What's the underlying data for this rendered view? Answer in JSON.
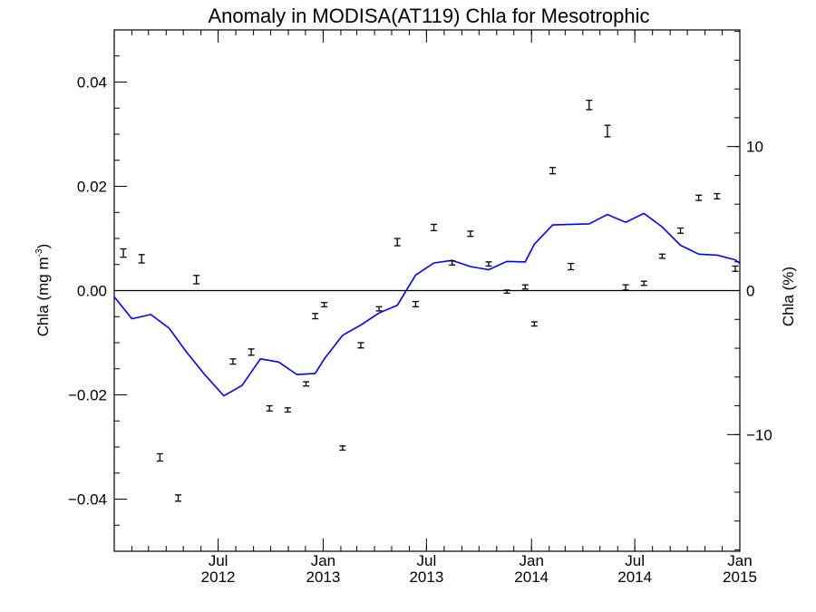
{
  "chart_data": {
    "type": "line",
    "title": "Anomaly in MODISA(AT119) Chla for Mesotrophic",
    "ylabel_left": {
      "main": "Chla (mg m",
      "sup": "-3",
      "close": ")"
    },
    "ylabel_right": "Chla (%)",
    "xlim": [
      "2012-01-01",
      "2015-01-01"
    ],
    "ylim_left": [
      -0.05,
      0.05
    ],
    "ylim_right": [
      -18.1,
      18.1
    ],
    "x_ticks": [
      {
        "date": "2012-07-01",
        "month": "Jul",
        "year": "2012"
      },
      {
        "date": "2013-01-01",
        "month": "Jan",
        "year": "2013"
      },
      {
        "date": "2013-07-01",
        "month": "Jul",
        "year": "2013"
      },
      {
        "date": "2014-01-01",
        "month": "Jan",
        "year": "2014"
      },
      {
        "date": "2014-07-01",
        "month": "Jul",
        "year": "2014"
      },
      {
        "date": "2015-01-01",
        "month": "Jan",
        "year": "2015"
      }
    ],
    "y_ticks_left": [
      {
        "value": -0.04,
        "label": "−0.04"
      },
      {
        "value": -0.02,
        "label": "−0.02"
      },
      {
        "value": 0.0,
        "label": "0.00"
      },
      {
        "value": 0.02,
        "label": "0.02"
      },
      {
        "value": 0.04,
        "label": "0.04"
      }
    ],
    "y_ticks_right": [
      {
        "value": -10,
        "label": "−10"
      },
      {
        "value": 0,
        "label": "0"
      },
      {
        "value": 10,
        "label": "10"
      }
    ],
    "zero_line": true,
    "series": [
      {
        "style": "error-bars",
        "axis": "left",
        "color": "#000000",
        "points": [
          {
            "x": "2012-01-17",
            "y": 0.0072,
            "err": 0.0008
          },
          {
            "x": "2012-02-18",
            "y": 0.0061,
            "err": 0.0008
          },
          {
            "x": "2012-03-21",
            "y": -0.032,
            "err": 0.0007
          },
          {
            "x": "2012-04-22",
            "y": -0.0398,
            "err": 0.0006
          },
          {
            "x": "2012-05-24",
            "y": 0.0021,
            "err": 0.0008
          },
          {
            "x": "2012-06-25",
            "y": null,
            "err": null
          },
          {
            "x": "2012-07-27",
            "y": -0.0136,
            "err": 0.0005
          },
          {
            "x": "2012-08-28",
            "y": -0.0118,
            "err": 0.0006
          },
          {
            "x": "2012-09-29",
            "y": -0.0226,
            "err": 0.0005
          },
          {
            "x": "2012-10-31",
            "y": -0.0229,
            "err": 0.0004
          },
          {
            "x": "2012-12-02",
            "y": -0.0179,
            "err": 0.0004
          },
          {
            "x": "2012-12-18",
            "y": -0.0049,
            "err": 0.0005
          },
          {
            "x": "2013-01-03",
            "y": -0.0027,
            "err": 0.0004
          },
          {
            "x": "2013-02-04",
            "y": -0.0302,
            "err": 0.0004
          },
          {
            "x": "2013-03-08",
            "y": -0.0105,
            "err": 0.0005
          },
          {
            "x": "2013-04-09",
            "y": -0.0035,
            "err": 0.0004
          },
          {
            "x": "2013-05-11",
            "y": 0.0093,
            "err": 0.0007
          },
          {
            "x": "2013-06-12",
            "y": -0.0026,
            "err": 0.0005
          },
          {
            "x": "2013-07-14",
            "y": 0.0121,
            "err": 0.0006
          },
          {
            "x": "2013-08-15",
            "y": 0.0053,
            "err": 0.0004
          },
          {
            "x": "2013-09-16",
            "y": 0.0109,
            "err": 0.0005
          },
          {
            "x": "2013-10-18",
            "y": 0.0051,
            "err": 0.0004
          },
          {
            "x": "2013-11-19",
            "y": -0.0002,
            "err": 0.0003
          },
          {
            "x": "2013-12-21",
            "y": 0.0007,
            "err": 0.0004
          },
          {
            "x": "2014-01-06",
            "y": -0.0064,
            "err": 0.0004
          },
          {
            "x": "2014-02-07",
            "y": 0.023,
            "err": 0.0006
          },
          {
            "x": "2014-03-11",
            "y": 0.0046,
            "err": 0.0006
          },
          {
            "x": "2014-04-12",
            "y": 0.0356,
            "err": 0.0009
          },
          {
            "x": "2014-05-14",
            "y": 0.0306,
            "err": 0.0011
          },
          {
            "x": "2014-06-15",
            "y": 0.0006,
            "err": 0.0005
          },
          {
            "x": "2014-07-17",
            "y": 0.0014,
            "err": 0.0004
          },
          {
            "x": "2014-08-18",
            "y": 0.0066,
            "err": 0.0004
          },
          {
            "x": "2014-09-19",
            "y": 0.0115,
            "err": 0.0005
          },
          {
            "x": "2014-10-21",
            "y": 0.0178,
            "err": 0.0005
          },
          {
            "x": "2014-11-22",
            "y": 0.0181,
            "err": 0.0005
          },
          {
            "x": "2014-12-24",
            "y": 0.0042,
            "err": 0.0005
          }
        ]
      },
      {
        "style": "line",
        "axis": "left",
        "color": "#0000ff",
        "points": [
          {
            "x": "2012-01-01",
            "y": -0.0012
          },
          {
            "x": "2012-02-01",
            "y": -0.0054
          },
          {
            "x": "2012-03-05",
            "y": -0.0046
          },
          {
            "x": "2012-04-06",
            "y": -0.0072
          },
          {
            "x": "2012-05-08",
            "y": -0.012
          },
          {
            "x": "2012-06-09",
            "y": -0.0163
          },
          {
            "x": "2012-07-11",
            "y": -0.0202
          },
          {
            "x": "2012-08-12",
            "y": -0.0182
          },
          {
            "x": "2012-09-13",
            "y": -0.0131
          },
          {
            "x": "2012-10-15",
            "y": -0.0137
          },
          {
            "x": "2012-11-16",
            "y": -0.0161
          },
          {
            "x": "2012-12-18",
            "y": -0.0159
          },
          {
            "x": "2013-01-03",
            "y": -0.0131
          },
          {
            "x": "2013-02-04",
            "y": -0.0086
          },
          {
            "x": "2013-03-08",
            "y": -0.0066
          },
          {
            "x": "2013-04-09",
            "y": -0.0043
          },
          {
            "x": "2013-05-11",
            "y": -0.0028
          },
          {
            "x": "2013-06-12",
            "y": 0.003
          },
          {
            "x": "2013-07-14",
            "y": 0.0053
          },
          {
            "x": "2013-08-15",
            "y": 0.0058
          },
          {
            "x": "2013-09-16",
            "y": 0.0046
          },
          {
            "x": "2013-10-18",
            "y": 0.004
          },
          {
            "x": "2013-11-19",
            "y": 0.0056
          },
          {
            "x": "2013-12-21",
            "y": 0.0055
          },
          {
            "x": "2014-01-06",
            "y": 0.0089
          },
          {
            "x": "2014-02-07",
            "y": 0.0126
          },
          {
            "x": "2014-04-12",
            "y": 0.0128
          },
          {
            "x": "2014-05-14",
            "y": 0.0146
          },
          {
            "x": "2014-06-15",
            "y": 0.0131
          },
          {
            "x": "2014-07-17",
            "y": 0.0148
          },
          {
            "x": "2014-08-18",
            "y": 0.0122
          },
          {
            "x": "2014-09-19",
            "y": 0.0087
          },
          {
            "x": "2014-10-21",
            "y": 0.007
          },
          {
            "x": "2014-11-22",
            "y": 0.0068
          },
          {
            "x": "2014-12-24",
            "y": 0.0059
          },
          {
            "x": "2015-01-01",
            "y": 0.0052
          }
        ]
      }
    ],
    "legend": "none",
    "grid": false
  }
}
